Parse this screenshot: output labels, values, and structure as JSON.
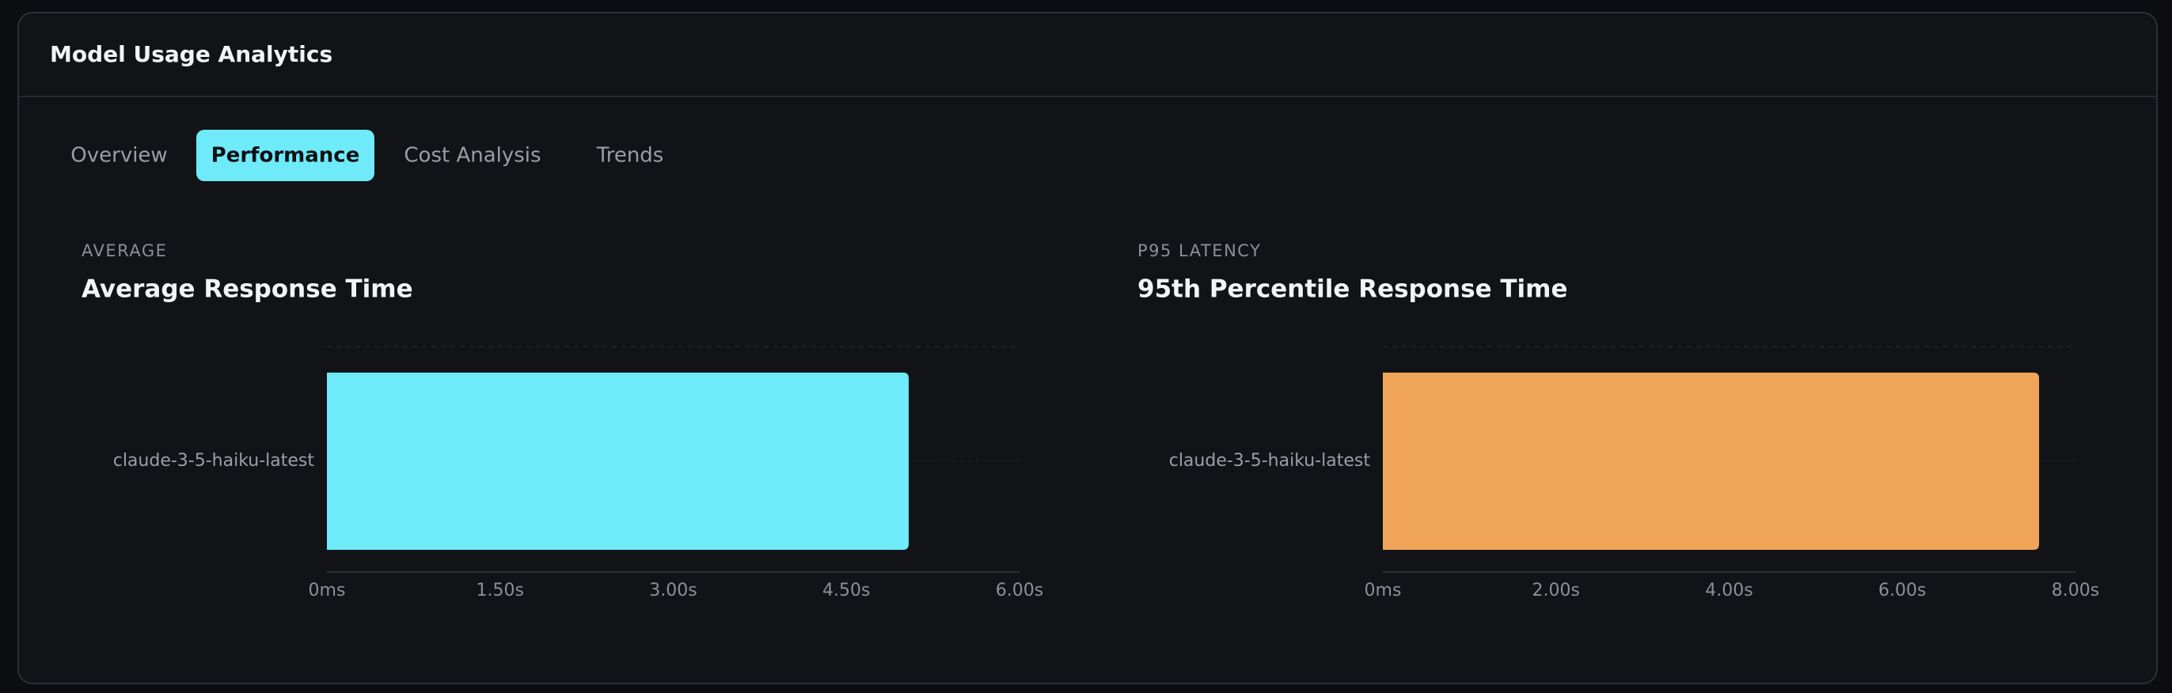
{
  "header": {
    "title": "Model Usage Analytics"
  },
  "tabs": [
    {
      "label": "Overview",
      "active": false
    },
    {
      "label": "Performance",
      "active": true
    },
    {
      "label": "Cost Analysis",
      "active": false
    },
    {
      "label": "Trends",
      "active": false
    }
  ],
  "chart_data": [
    {
      "type": "bar",
      "orientation": "horizontal",
      "subtitle": "AVERAGE",
      "title": "Average Response Time",
      "categories": [
        "claude-3-5-haiku-latest"
      ],
      "values": [
        5.04
      ],
      "color": "#6eeaf9",
      "xlim": [
        0,
        6
      ],
      "xticks": [
        {
          "value": 0,
          "label": "0ms"
        },
        {
          "value": 1.5,
          "label": "1.50s"
        },
        {
          "value": 3,
          "label": "3.00s"
        },
        {
          "value": 4.5,
          "label": "4.50s"
        },
        {
          "value": 6,
          "label": "6.00s"
        }
      ]
    },
    {
      "type": "bar",
      "orientation": "horizontal",
      "subtitle": "P95 LATENCY",
      "title": "95th Percentile Response Time",
      "categories": [
        "claude-3-5-haiku-latest"
      ],
      "values": [
        7.58
      ],
      "color": "#f0a457",
      "xlim": [
        0,
        8
      ],
      "xticks": [
        {
          "value": 0,
          "label": "0ms"
        },
        {
          "value": 2,
          "label": "2.00s"
        },
        {
          "value": 4,
          "label": "4.00s"
        },
        {
          "value": 6,
          "label": "6.00s"
        },
        {
          "value": 8,
          "label": "8.00s"
        }
      ]
    }
  ]
}
